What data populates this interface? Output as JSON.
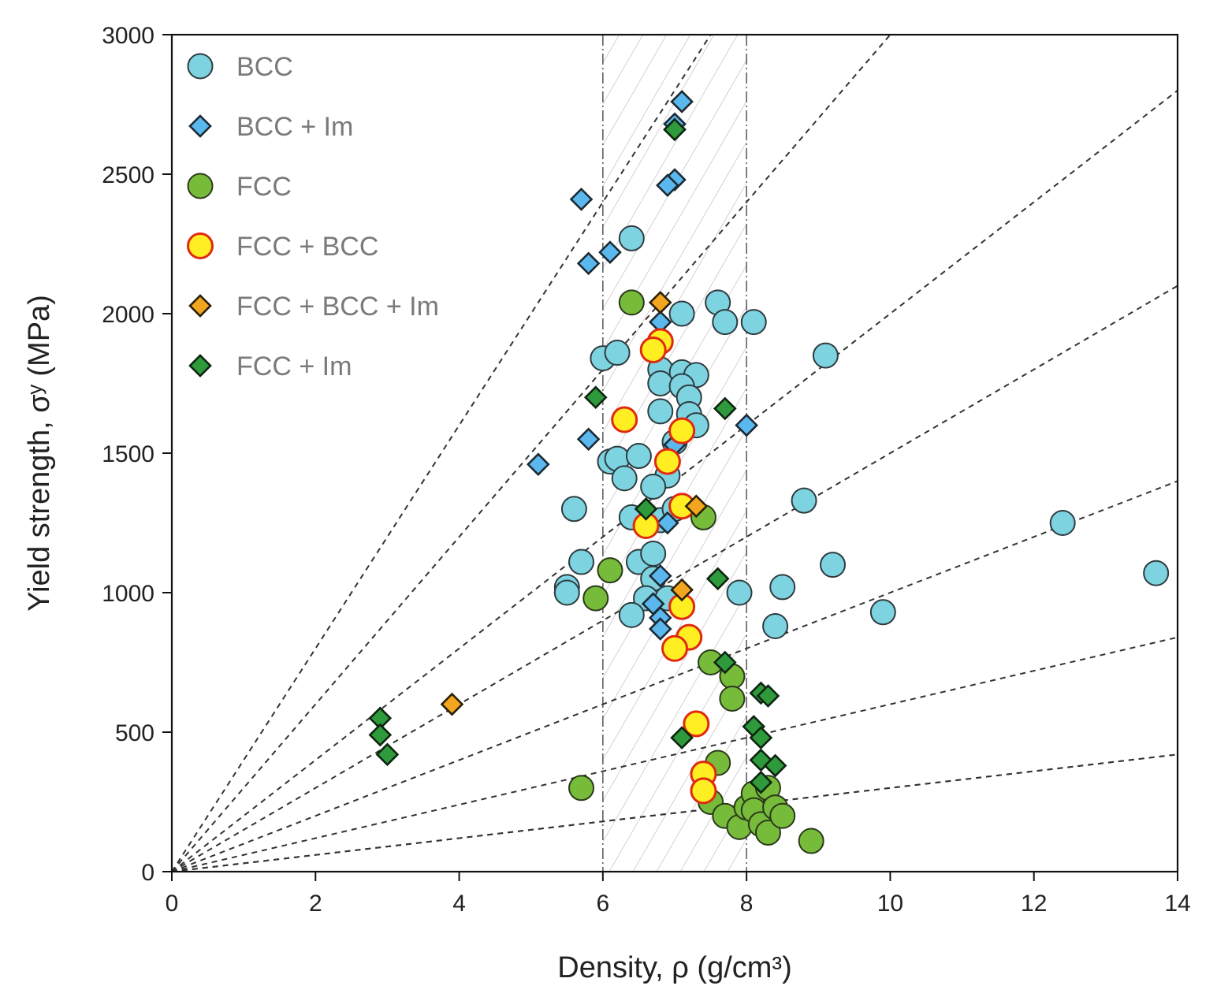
{
  "chart_data": {
    "type": "scatter",
    "xlabel": "Density, ρ (g/cm³)",
    "ylabel": "Yield strength, σʸ (MPa)",
    "xlim": [
      0,
      14
    ],
    "ylim": [
      0,
      3000
    ],
    "xticks": [
      "0",
      "2",
      "4",
      "6",
      "8",
      "10",
      "12",
      "14"
    ],
    "yticks": [
      "0",
      "500",
      "1000",
      "1500",
      "2000",
      "2500",
      "3000"
    ],
    "grid": false,
    "legend_position": "top-left",
    "shaded_band": {
      "x_from": 6,
      "x_to": 8,
      "pattern": "diagonal-hatch"
    },
    "guide_line_slopes": [
      30,
      400,
      300,
      200,
      150,
      100,
      60,
      30
    ],
    "series": [
      {
        "name": "BCC",
        "marker": "circle",
        "fill": "#7dd3e0",
        "stroke": "#2f3b40",
        "points": [
          [
            6.4,
            2270
          ],
          [
            7.1,
            2000
          ],
          [
            7.6,
            2040
          ],
          [
            7.7,
            1970
          ],
          [
            8.1,
            1970
          ],
          [
            9.1,
            1850
          ],
          [
            6.0,
            1840
          ],
          [
            6.2,
            1860
          ],
          [
            6.8,
            1800
          ],
          [
            7.1,
            1790
          ],
          [
            7.3,
            1780
          ],
          [
            6.8,
            1750
          ],
          [
            7.1,
            1740
          ],
          [
            7.2,
            1700
          ],
          [
            6.8,
            1650
          ],
          [
            7.2,
            1640
          ],
          [
            7.3,
            1600
          ],
          [
            7.0,
            1540
          ],
          [
            6.1,
            1470
          ],
          [
            6.2,
            1480
          ],
          [
            6.5,
            1490
          ],
          [
            6.3,
            1410
          ],
          [
            6.9,
            1420
          ],
          [
            6.7,
            1380
          ],
          [
            5.6,
            1300
          ],
          [
            6.4,
            1270
          ],
          [
            6.8,
            1260
          ],
          [
            7.0,
            1300
          ],
          [
            8.8,
            1330
          ],
          [
            12.4,
            1250
          ],
          [
            5.7,
            1110
          ],
          [
            6.5,
            1110
          ],
          [
            6.7,
            1140
          ],
          [
            6.7,
            1050
          ],
          [
            9.2,
            1100
          ],
          [
            13.7,
            1070
          ],
          [
            5.5,
            1020
          ],
          [
            5.5,
            1000
          ],
          [
            6.6,
            980
          ],
          [
            6.9,
            980
          ],
          [
            7.9,
            1000
          ],
          [
            8.5,
            1020
          ],
          [
            6.4,
            920
          ],
          [
            8.4,
            880
          ],
          [
            9.9,
            930
          ]
        ]
      },
      {
        "name": "BCC + Im",
        "marker": "diamond",
        "fill": "#5bb8ee",
        "stroke": "#1d2a33",
        "points": [
          [
            7.1,
            2760
          ],
          [
            7.0,
            2680
          ],
          [
            7.0,
            2660
          ],
          [
            7.0,
            2480
          ],
          [
            6.9,
            2460
          ],
          [
            5.7,
            2410
          ],
          [
            6.1,
            2220
          ],
          [
            5.8,
            2180
          ],
          [
            6.8,
            1970
          ],
          [
            8.0,
            1600
          ],
          [
            5.8,
            1550
          ],
          [
            7.0,
            1530
          ],
          [
            5.1,
            1460
          ],
          [
            6.9,
            1250
          ],
          [
            6.8,
            1060
          ],
          [
            6.7,
            960
          ],
          [
            6.8,
            910
          ],
          [
            6.8,
            870
          ]
        ]
      },
      {
        "name": "FCC",
        "marker": "circle",
        "fill": "#77bb3a",
        "stroke": "#2a3a1a",
        "points": [
          [
            6.4,
            2040
          ],
          [
            6.1,
            1080
          ],
          [
            5.9,
            980
          ],
          [
            7.4,
            1270
          ],
          [
            5.7,
            300
          ],
          [
            7.5,
            750
          ],
          [
            7.8,
            700
          ],
          [
            7.8,
            620
          ],
          [
            7.6,
            390
          ],
          [
            7.5,
            250
          ],
          [
            7.7,
            200
          ],
          [
            7.9,
            160
          ],
          [
            8.0,
            230
          ],
          [
            8.1,
            280
          ],
          [
            8.1,
            220
          ],
          [
            8.2,
            170
          ],
          [
            8.3,
            140
          ],
          [
            8.3,
            300
          ],
          [
            8.4,
            230
          ],
          [
            8.5,
            200
          ],
          [
            8.9,
            110
          ]
        ]
      },
      {
        "name": "FCC + BCC",
        "marker": "circle",
        "fill": "#ffee22",
        "stroke": "#e02a10",
        "points": [
          [
            6.8,
            1900
          ],
          [
            6.7,
            1870
          ],
          [
            6.3,
            1620
          ],
          [
            7.1,
            1580
          ],
          [
            6.9,
            1470
          ],
          [
            7.1,
            1310
          ],
          [
            6.6,
            1240
          ],
          [
            7.1,
            950
          ],
          [
            7.2,
            840
          ],
          [
            7.0,
            800
          ],
          [
            7.3,
            530
          ],
          [
            7.4,
            350
          ],
          [
            7.4,
            290
          ]
        ]
      },
      {
        "name": "FCC + BCC + Im",
        "marker": "diamond",
        "fill": "#f2a620",
        "stroke": "#2a2008",
        "points": [
          [
            6.8,
            2040
          ],
          [
            7.3,
            1310
          ],
          [
            7.1,
            1010
          ],
          [
            3.9,
            600
          ]
        ]
      },
      {
        "name": "FCC + Im",
        "marker": "diamond",
        "fill": "#2f9a3c",
        "stroke": "#0d2410",
        "points": [
          [
            7.0,
            2660
          ],
          [
            5.9,
            1700
          ],
          [
            7.7,
            1660
          ],
          [
            6.6,
            1300
          ],
          [
            7.6,
            1050
          ],
          [
            7.7,
            750
          ],
          [
            8.2,
            640
          ],
          [
            8.3,
            630
          ],
          [
            8.1,
            520
          ],
          [
            8.2,
            480
          ],
          [
            7.1,
            480
          ],
          [
            8.2,
            400
          ],
          [
            8.4,
            380
          ],
          [
            8.2,
            320
          ],
          [
            2.9,
            550
          ],
          [
            2.9,
            490
          ],
          [
            3.0,
            420
          ]
        ]
      }
    ]
  }
}
